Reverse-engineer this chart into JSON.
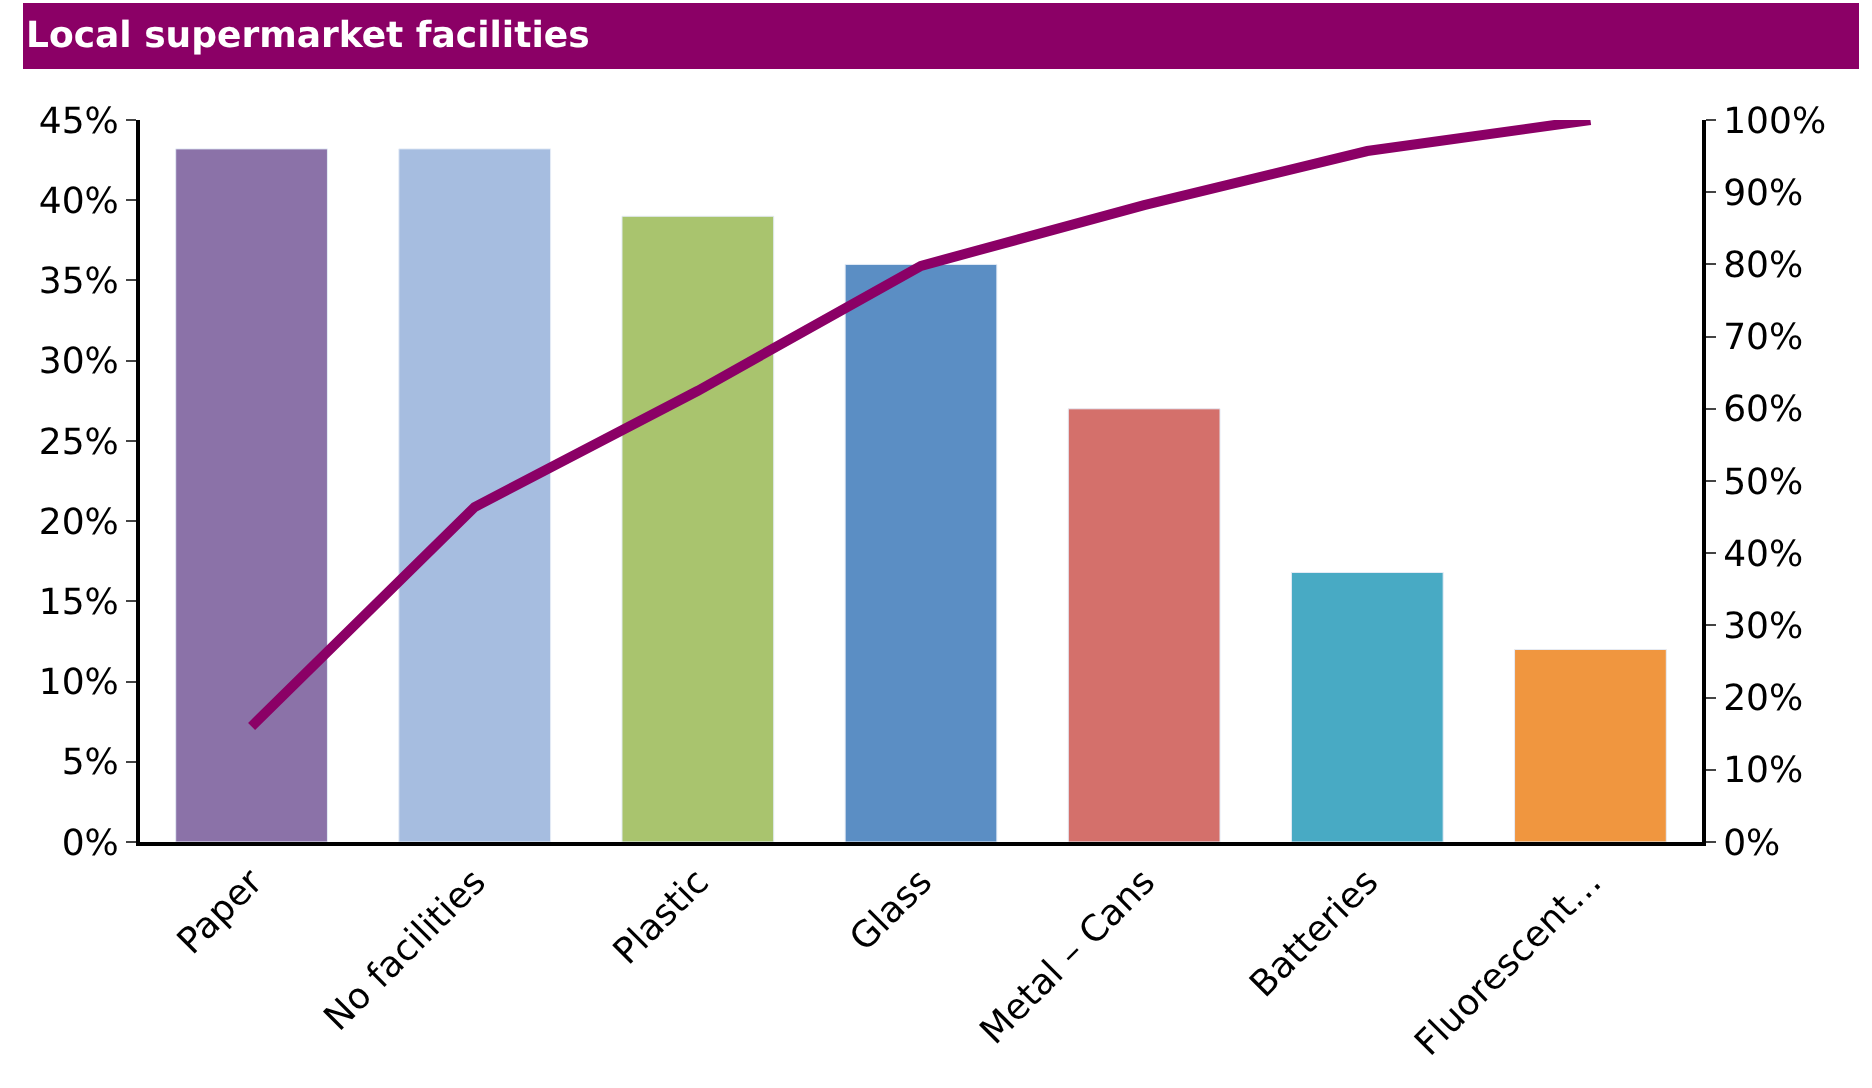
{
  "chart_data": {
    "type": "bar",
    "title": "Local supermarket facilities",
    "categories": [
      "Paper",
      "No facilities",
      "Plastic",
      "Glass",
      "Metal – Cans",
      "Batteries",
      "Fluorescent…"
    ],
    "series": [
      {
        "colors": [
          "#8b72a8",
          "#a6bde0",
          "#a9c46e",
          "#5b8ec4",
          "#d4706b",
          "#48aac4",
          "#f0963f"
        ],
        "values": [
          43.2,
          43.2,
          39.0,
          36.0,
          27.0,
          16.8,
          12.0
        ]
      },
      {
        "type": "line",
        "axis": "y2",
        "color": "#8b0066",
        "values": [
          16,
          46.4,
          62.5,
          79.8,
          88.2,
          95.7,
          100
        ]
      }
    ],
    "ylim": [
      0,
      45
    ],
    "yticks": [
      {
        "value": 0,
        "label": "0%"
      },
      {
        "value": 5,
        "label": "5%"
      },
      {
        "value": 10,
        "label": "10%"
      },
      {
        "value": 15,
        "label": "15%"
      },
      {
        "value": 20,
        "label": "20%"
      },
      {
        "value": 25,
        "label": "25%"
      },
      {
        "value": 30,
        "label": "30%"
      },
      {
        "value": 35,
        "label": "35%"
      },
      {
        "value": 40,
        "label": "40%"
      },
      {
        "value": 45,
        "label": "45%"
      }
    ],
    "y2lim": [
      0,
      100
    ],
    "y2ticks": [
      {
        "value": 0,
        "label": "0%"
      },
      {
        "value": 10,
        "label": "10%"
      },
      {
        "value": 20,
        "label": "20%"
      },
      {
        "value": 30,
        "label": "30%"
      },
      {
        "value": 40,
        "label": "40%"
      },
      {
        "value": 50,
        "label": "50%"
      },
      {
        "value": 60,
        "label": "60%"
      },
      {
        "value": 70,
        "label": "70%"
      },
      {
        "value": 80,
        "label": "80%"
      },
      {
        "value": 90,
        "label": "90%"
      },
      {
        "value": 100,
        "label": "100%"
      }
    ],
    "marker": "none",
    "line_style": "solid"
  }
}
